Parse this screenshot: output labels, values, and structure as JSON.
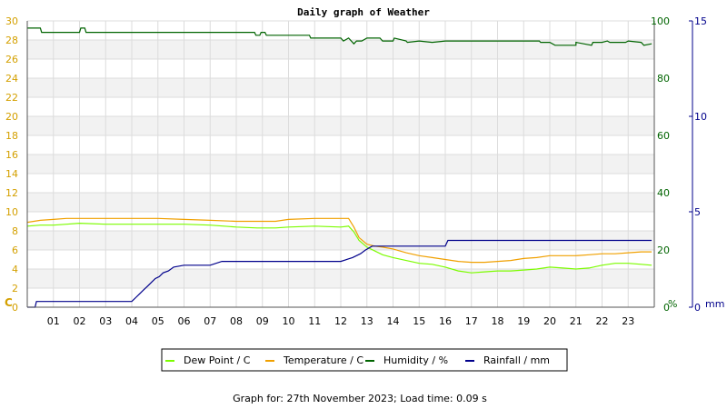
{
  "chart_data": {
    "type": "line",
    "title": "Daily graph of Weather",
    "x_ticks": [
      "01",
      "02",
      "03",
      "04",
      "05",
      "06",
      "07",
      "08",
      "09",
      "10",
      "11",
      "12",
      "13",
      "14",
      "15",
      "16",
      "17",
      "18",
      "19",
      "20",
      "21",
      "22",
      "23"
    ],
    "xlim": [
      0,
      24
    ],
    "axes": {
      "temperature": {
        "unit_label": "C",
        "ylim": [
          0,
          30
        ],
        "ticks": [
          "0",
          "2",
          "4",
          "6",
          "8",
          "10",
          "12",
          "14",
          "16",
          "18",
          "20",
          "22",
          "24",
          "26",
          "28",
          "30"
        ],
        "color": "#d4a000"
      },
      "humidity": {
        "unit_label": "%",
        "ylim": [
          0,
          100
        ],
        "ticks": [
          "0",
          "20",
          "40",
          "60",
          "80",
          "100"
        ],
        "color": "#006400"
      },
      "rainfall": {
        "unit_label": "mm",
        "ylim": [
          0,
          15
        ],
        "ticks": [
          "0",
          "5",
          "10",
          "15"
        ],
        "color": "#00008b"
      }
    },
    "grid": true,
    "legend_placement": "bottom-center",
    "series": [
      {
        "name": "Dew Point / C",
        "axis": "temperature",
        "color": "#7cfc00",
        "x": [
          0,
          0.5,
          1,
          1.5,
          2,
          3,
          4,
          5,
          6,
          7,
          8,
          8.8,
          9,
          9.5,
          10,
          11,
          12,
          12.3,
          12.5,
          12.7,
          13,
          13.3,
          13.6,
          14,
          14.5,
          15,
          15.5,
          16,
          16.5,
          17,
          17.5,
          18,
          18.5,
          19,
          19.5,
          20,
          20.5,
          21,
          21.5,
          22,
          22.5,
          23,
          23.5,
          23.9
        ],
        "values": [
          8.5,
          8.6,
          8.6,
          8.7,
          8.8,
          8.7,
          8.7,
          8.7,
          8.7,
          8.6,
          8.4,
          8.3,
          8.3,
          8.3,
          8.4,
          8.5,
          8.4,
          8.5,
          7.9,
          7.0,
          6.3,
          5.9,
          5.5,
          5.2,
          4.9,
          4.6,
          4.5,
          4.2,
          3.8,
          3.6,
          3.7,
          3.8,
          3.8,
          3.9,
          4.0,
          4.2,
          4.1,
          4.0,
          4.1,
          4.4,
          4.6,
          4.6,
          4.5,
          4.4
        ]
      },
      {
        "name": "Temperature / C",
        "axis": "temperature",
        "color": "#f0a000",
        "x": [
          0,
          0.5,
          1,
          1.5,
          2,
          3,
          4,
          5,
          6,
          7,
          8,
          8.8,
          9,
          9.5,
          10,
          11,
          12,
          12.3,
          12.5,
          12.7,
          13,
          13.3,
          13.6,
          14,
          14.5,
          15,
          15.5,
          16,
          16.5,
          17,
          17.5,
          18,
          18.5,
          19,
          19.5,
          20,
          20.5,
          21,
          21.5,
          22,
          22.5,
          23,
          23.5,
          23.9
        ],
        "values": [
          8.9,
          9.1,
          9.2,
          9.3,
          9.3,
          9.3,
          9.3,
          9.3,
          9.2,
          9.1,
          9.0,
          9.0,
          9.0,
          9.0,
          9.2,
          9.3,
          9.3,
          9.3,
          8.4,
          7.3,
          6.6,
          6.4,
          6.3,
          6.1,
          5.7,
          5.4,
          5.2,
          5.0,
          4.8,
          4.7,
          4.7,
          4.8,
          4.9,
          5.1,
          5.2,
          5.4,
          5.4,
          5.4,
          5.5,
          5.6,
          5.6,
          5.7,
          5.8,
          5.8
        ]
      },
      {
        "name": "Humidity / %",
        "axis": "humidity",
        "color": "#006400",
        "x": [
          0,
          0.5,
          0.55,
          2,
          2.05,
          2.2,
          2.25,
          3,
          6,
          7,
          8,
          8.7,
          8.75,
          8.9,
          8.95,
          9.1,
          9.15,
          9.3,
          9.4,
          10,
          10.8,
          10.85,
          12,
          12.1,
          12.3,
          12.5,
          12.6,
          12.8,
          13,
          13.5,
          13.6,
          14,
          14.05,
          14.5,
          14.55,
          15,
          15.5,
          16,
          17,
          18,
          19,
          19.6,
          19.65,
          20,
          20.2,
          20.3,
          21,
          21,
          21.6,
          21.65,
          22,
          22.2,
          22.3,
          22.9,
          23,
          23.5,
          23.6,
          23.9
        ],
        "values": [
          97.5,
          97.5,
          96,
          96,
          97.5,
          97.5,
          96,
          96,
          96,
          96,
          96,
          96,
          95,
          95,
          96,
          96,
          95,
          95,
          95,
          95,
          95,
          94,
          94,
          93,
          94,
          92,
          93,
          93,
          94,
          94,
          93,
          93,
          94,
          93,
          92.5,
          93,
          92.5,
          93,
          93,
          93,
          93,
          93,
          92.5,
          92.5,
          91.5,
          91.5,
          91.5,
          92.5,
          91.5,
          92.5,
          92.5,
          93,
          92.5,
          92.5,
          93,
          92.5,
          91.5,
          92
        ]
      },
      {
        "name": "Rainfall / mm",
        "axis": "rainfall",
        "color": "#00008b",
        "x": [
          0,
          0.3,
          0.35,
          4,
          4.15,
          4.3,
          4.45,
          4.6,
          4.75,
          4.9,
          5.05,
          5.2,
          5.4,
          5.6,
          6,
          7,
          7.45,
          8,
          9,
          10,
          11,
          12,
          12.45,
          12.75,
          12.95,
          13.2,
          14,
          15,
          16,
          16.1,
          17,
          18,
          19,
          20,
          21,
          22,
          23,
          23.9
        ],
        "values": [
          0,
          0,
          0.3,
          0.3,
          0.5,
          0.7,
          0.9,
          1.1,
          1.3,
          1.5,
          1.6,
          1.8,
          1.9,
          2.1,
          2.2,
          2.2,
          2.4,
          2.4,
          2.4,
          2.4,
          2.4,
          2.4,
          2.6,
          2.8,
          3.0,
          3.2,
          3.2,
          3.2,
          3.2,
          3.5,
          3.5,
          3.5,
          3.5,
          3.5,
          3.5,
          3.5,
          3.5,
          3.5
        ]
      }
    ]
  },
  "legend": {
    "items": [
      {
        "label": "Dew Point / C",
        "color": "#7cfc00"
      },
      {
        "label": "Temperature / C",
        "color": "#f0a000"
      },
      {
        "label": "Humidity / %",
        "color": "#006400"
      },
      {
        "label": "Rainfall / mm",
        "color": "#00008b"
      }
    ]
  },
  "footer": {
    "text": "Graph for: 27th November 2023; Load time: 0.09 s"
  }
}
